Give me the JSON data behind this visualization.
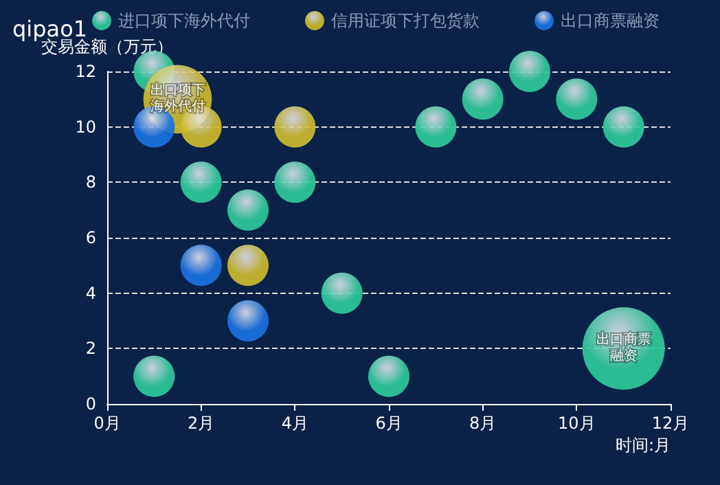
{
  "chart_data": {
    "type": "bubble",
    "title": "qipao1",
    "xlabel": "时间:月",
    "ylabel": "交易金额（万元）",
    "xlim": [
      0,
      12
    ],
    "xticks": [
      {
        "value": 0,
        "label": "0月"
      },
      {
        "value": 2,
        "label": "2月"
      },
      {
        "value": 4,
        "label": "4月"
      },
      {
        "value": 6,
        "label": "6月"
      },
      {
        "value": 8,
        "label": "8月"
      },
      {
        "value": 10,
        "label": "10月"
      },
      {
        "value": 12,
        "label": "12月"
      }
    ],
    "ylim": [
      0,
      12
    ],
    "yticks": [
      0,
      2,
      4,
      6,
      8,
      10,
      12
    ],
    "grid": "y",
    "legend": "top",
    "series": [
      {
        "name": "进口项下海外代付",
        "color": "#2ec99a",
        "x": [
          1,
          2,
          3,
          4,
          5,
          6,
          1,
          7,
          8,
          9,
          10,
          11,
          11
        ],
        "values": [
          12,
          8,
          7,
          8,
          4,
          1,
          1,
          10,
          11,
          12,
          11,
          10,
          2
        ],
        "sizes": [
          0.25,
          0.25,
          0.25,
          0.25,
          0.25,
          0.25,
          0.25,
          0.25,
          0.25,
          0.25,
          0.25,
          0.25,
          1
        ],
        "value_labels": [
          null,
          null,
          null,
          null,
          null,
          null,
          null,
          null,
          null,
          null,
          null,
          null,
          "出口商票融资"
        ]
      },
      {
        "name": "信用证项下打包货款",
        "color": "#cdb92c",
        "x": [
          1.5,
          2,
          3,
          4
        ],
        "values": [
          11,
          10,
          5,
          10
        ],
        "sizes": [
          0.69,
          0.25,
          0.25,
          0.25
        ],
        "value_labels": [
          "出口项下海外代付",
          null,
          null,
          null
        ]
      },
      {
        "name": "出口商票融资",
        "color": "#1a72e0",
        "x": [
          1,
          2,
          3
        ],
        "values": [
          10,
          5,
          3
        ],
        "sizes": [
          0.25,
          0.25,
          0.25
        ],
        "value_labels": [
          null,
          null,
          null
        ]
      }
    ]
  }
}
